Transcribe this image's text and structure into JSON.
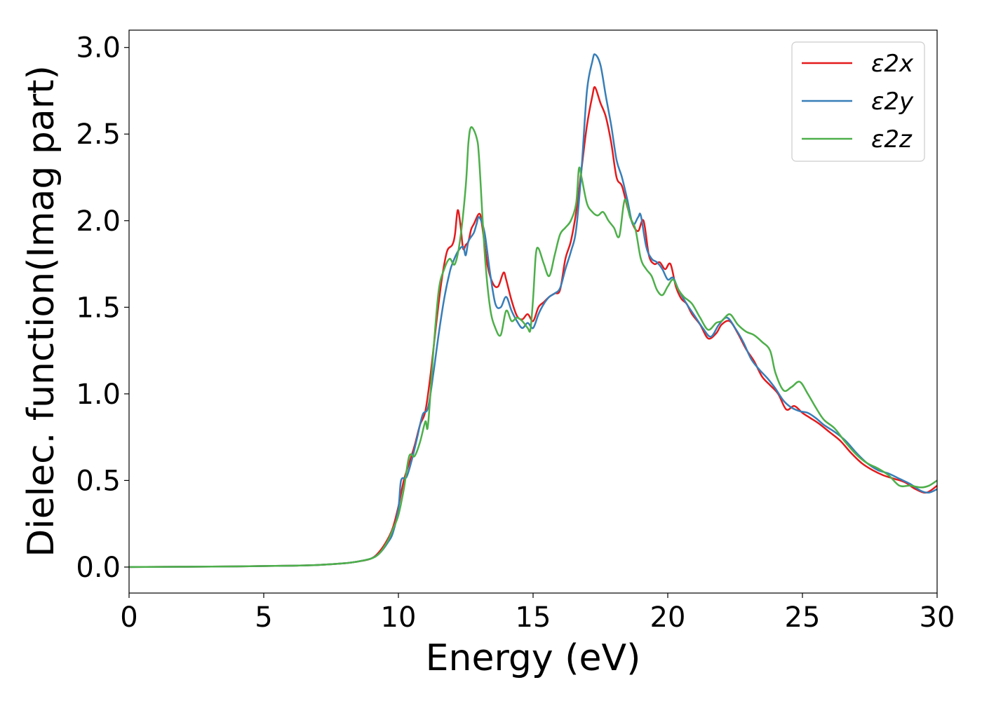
{
  "chart_data": {
    "type": "line",
    "title": "",
    "xlabel": "Energy (eV)",
    "ylabel": "Dielec. function(Imag part)",
    "xlim": [
      0,
      30
    ],
    "ylim": [
      -0.15,
      3.1
    ],
    "xticks": [
      "0",
      "5",
      "10",
      "15",
      "20",
      "25",
      "30"
    ],
    "yticks": [
      "0.0",
      "0.5",
      "1.0",
      "1.5",
      "2.0",
      "2.5",
      "3.0"
    ],
    "grid": false,
    "legend_position": "top-right",
    "series": [
      {
        "name": "ε2x",
        "color": "#e41a1c",
        "x": [
          0,
          4,
          6,
          7,
          8,
          8.5,
          9,
          9.3,
          9.6,
          9.8,
          10.0,
          10.2,
          10.4,
          10.6,
          10.8,
          11.0,
          11.2,
          11.4,
          11.6,
          11.8,
          12.0,
          12.1,
          12.2,
          12.3,
          12.4,
          12.5,
          12.6,
          12.7,
          12.8,
          13.0,
          13.1,
          13.3,
          13.5,
          13.7,
          13.9,
          14.0,
          14.2,
          14.4,
          14.6,
          14.8,
          15.0,
          15.2,
          15.4,
          15.6,
          15.8,
          16.0,
          16.2,
          16.4,
          16.6,
          16.8,
          17.0,
          17.2,
          17.3,
          17.5,
          17.7,
          17.9,
          18.1,
          18.3,
          18.5,
          18.7,
          18.9,
          19.1,
          19.3,
          19.5,
          19.7,
          19.9,
          20.1,
          20.3,
          20.5,
          20.7,
          20.9,
          21.2,
          21.5,
          21.8,
          22.0,
          22.3,
          22.6,
          22.9,
          23.2,
          23.5,
          23.8,
          24.1,
          24.4,
          24.7,
          25.0,
          25.3,
          25.6,
          26.0,
          26.4,
          26.8,
          27.2,
          27.6,
          28.0,
          28.4,
          28.8,
          29.2,
          29.6,
          30.0
        ],
        "values": [
          0,
          0.004,
          0.008,
          0.012,
          0.022,
          0.032,
          0.05,
          0.09,
          0.16,
          0.23,
          0.35,
          0.5,
          0.6,
          0.7,
          0.82,
          0.9,
          1.12,
          1.4,
          1.65,
          1.82,
          1.86,
          1.92,
          2.06,
          1.98,
          1.84,
          1.86,
          1.88,
          1.95,
          1.98,
          2.04,
          1.98,
          1.75,
          1.64,
          1.62,
          1.7,
          1.66,
          1.54,
          1.45,
          1.43,
          1.46,
          1.42,
          1.5,
          1.53,
          1.56,
          1.58,
          1.6,
          1.78,
          1.88,
          2.05,
          2.3,
          2.55,
          2.72,
          2.77,
          2.68,
          2.6,
          2.45,
          2.25,
          2.2,
          2.08,
          1.98,
          1.94,
          2.0,
          1.8,
          1.75,
          1.76,
          1.72,
          1.75,
          1.62,
          1.55,
          1.52,
          1.46,
          1.4,
          1.32,
          1.35,
          1.4,
          1.42,
          1.35,
          1.26,
          1.19,
          1.1,
          1.05,
          1.0,
          0.91,
          0.93,
          0.89,
          0.86,
          0.83,
          0.78,
          0.73,
          0.66,
          0.6,
          0.56,
          0.53,
          0.51,
          0.49,
          0.45,
          0.43,
          0.47
        ]
      },
      {
        "name": "ε2y",
        "color": "#377eb8",
        "x": [
          0,
          4,
          6,
          7,
          8,
          8.5,
          9,
          9.3,
          9.6,
          9.8,
          10.0,
          10.1,
          10.3,
          10.5,
          10.7,
          10.9,
          11.1,
          11.3,
          11.5,
          11.7,
          11.9,
          12.0,
          12.2,
          12.4,
          12.5,
          12.6,
          12.8,
          12.9,
          13.0,
          13.2,
          13.4,
          13.6,
          13.8,
          14.0,
          14.2,
          14.4,
          14.6,
          14.8,
          15.0,
          15.2,
          15.4,
          15.6,
          15.8,
          16.0,
          16.2,
          16.4,
          16.6,
          16.8,
          17.0,
          17.2,
          17.3,
          17.5,
          17.7,
          17.9,
          18.1,
          18.3,
          18.5,
          18.7,
          18.9,
          19.0,
          19.2,
          19.4,
          19.6,
          19.8,
          20.0,
          20.2,
          20.4,
          20.7,
          21.0,
          21.3,
          21.6,
          21.9,
          22.2,
          22.5,
          22.8,
          23.1,
          23.4,
          23.7,
          24.0,
          24.3,
          24.6,
          24.9,
          25.2,
          25.5,
          25.8,
          26.2,
          26.6,
          27.0,
          27.4,
          27.8,
          28.2,
          28.6,
          29.0,
          29.4,
          29.7,
          30.0
        ],
        "values": [
          0,
          0.004,
          0.008,
          0.012,
          0.022,
          0.032,
          0.05,
          0.08,
          0.14,
          0.2,
          0.34,
          0.5,
          0.52,
          0.62,
          0.75,
          0.88,
          0.92,
          1.12,
          1.35,
          1.55,
          1.7,
          1.75,
          1.82,
          1.85,
          1.8,
          1.88,
          1.93,
          1.98,
          2.02,
          1.93,
          1.7,
          1.52,
          1.5,
          1.56,
          1.48,
          1.42,
          1.38,
          1.41,
          1.38,
          1.46,
          1.52,
          1.56,
          1.58,
          1.61,
          1.72,
          1.82,
          1.95,
          2.3,
          2.75,
          2.92,
          2.96,
          2.9,
          2.72,
          2.55,
          2.35,
          2.25,
          2.12,
          1.98,
          2.02,
          2.03,
          1.85,
          1.78,
          1.76,
          1.72,
          1.66,
          1.67,
          1.6,
          1.52,
          1.45,
          1.38,
          1.33,
          1.4,
          1.44,
          1.38,
          1.3,
          1.2,
          1.14,
          1.09,
          1.03,
          0.96,
          0.92,
          0.9,
          0.89,
          0.86,
          0.82,
          0.78,
          0.73,
          0.66,
          0.6,
          0.56,
          0.54,
          0.51,
          0.48,
          0.44,
          0.43,
          0.45
        ]
      },
      {
        "name": "ε2z",
        "color": "#4daf4a",
        "x": [
          0,
          4,
          6,
          7,
          8,
          8.5,
          9,
          9.3,
          9.6,
          9.8,
          10.0,
          10.2,
          10.4,
          10.6,
          10.8,
          11.0,
          11.1,
          11.3,
          11.5,
          11.7,
          11.9,
          12.1,
          12.3,
          12.5,
          12.6,
          12.7,
          12.9,
          13.0,
          13.2,
          13.4,
          13.6,
          13.8,
          14.0,
          14.2,
          14.4,
          14.6,
          14.8,
          14.9,
          15.0,
          15.1,
          15.2,
          15.4,
          15.6,
          15.8,
          16.0,
          16.2,
          16.4,
          16.6,
          16.7,
          16.8,
          17.0,
          17.2,
          17.4,
          17.6,
          17.8,
          18.0,
          18.2,
          18.4,
          18.6,
          18.8,
          19.0,
          19.2,
          19.4,
          19.6,
          19.8,
          20.0,
          20.2,
          20.4,
          20.6,
          20.9,
          21.2,
          21.5,
          21.8,
          22.0,
          22.3,
          22.6,
          22.9,
          23.2,
          23.5,
          23.8,
          24.0,
          24.3,
          24.6,
          24.9,
          25.2,
          25.5,
          25.8,
          26.2,
          26.6,
          27.0,
          27.4,
          27.8,
          28.2,
          28.6,
          29.0,
          29.4,
          29.7,
          30.0
        ],
        "values": [
          0,
          0.004,
          0.008,
          0.012,
          0.022,
          0.032,
          0.05,
          0.08,
          0.15,
          0.22,
          0.3,
          0.45,
          0.64,
          0.64,
          0.72,
          0.84,
          0.82,
          1.25,
          1.6,
          1.72,
          1.78,
          1.75,
          1.9,
          2.2,
          2.45,
          2.54,
          2.48,
          2.35,
          1.82,
          1.5,
          1.38,
          1.34,
          1.48,
          1.42,
          1.44,
          1.42,
          1.38,
          1.37,
          1.55,
          1.8,
          1.84,
          1.75,
          1.68,
          1.8,
          1.92,
          1.96,
          2.0,
          2.1,
          2.3,
          2.25,
          2.1,
          2.05,
          2.03,
          2.05,
          2.0,
          1.96,
          1.91,
          2.12,
          2.02,
          1.95,
          1.78,
          1.72,
          1.68,
          1.6,
          1.57,
          1.62,
          1.66,
          1.6,
          1.56,
          1.52,
          1.44,
          1.37,
          1.41,
          1.42,
          1.46,
          1.4,
          1.36,
          1.34,
          1.3,
          1.25,
          1.12,
          1.02,
          1.04,
          1.07,
          1.0,
          0.92,
          0.85,
          0.8,
          0.72,
          0.65,
          0.6,
          0.57,
          0.53,
          0.47,
          0.47,
          0.46,
          0.47,
          0.5
        ]
      }
    ]
  }
}
